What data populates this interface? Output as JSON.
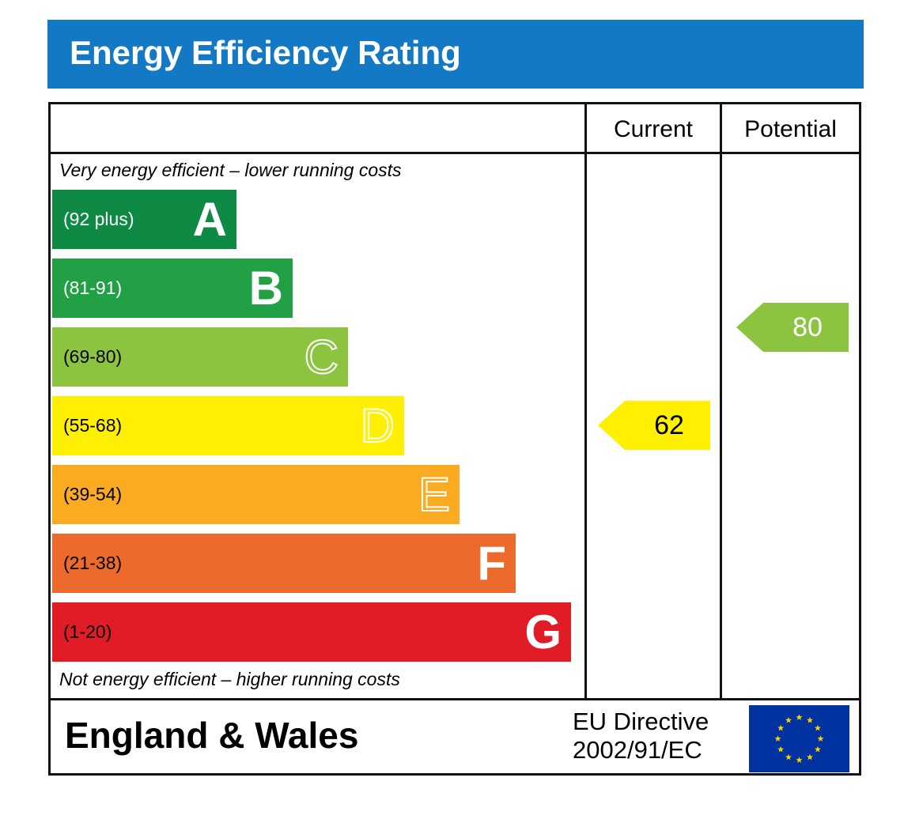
{
  "header": {
    "title": "Energy Efficiency Rating",
    "color": "#1479c4"
  },
  "columns": {
    "current": "Current",
    "potential": "Potential"
  },
  "captions": {
    "top": "Very energy efficient – lower running costs",
    "bottom": "Not energy efficient – higher running costs"
  },
  "footer": {
    "region": "England & Wales",
    "directive_line1": "EU Directive",
    "directive_line2": "2002/91/EC",
    "flag_icon": "eu-flag-icon"
  },
  "chart_data": {
    "type": "bar",
    "title": "Energy Efficiency Rating",
    "bands": [
      {
        "letter": "A",
        "range": "(92 plus)",
        "color": "#0f8a45",
        "text_color": "#ffffff",
        "letter_style": "solid"
      },
      {
        "letter": "B",
        "range": "(81-91)",
        "color": "#22a046",
        "text_color": "#ffffff",
        "letter_style": "solid"
      },
      {
        "letter": "C",
        "range": "(69-80)",
        "color": "#8cc43f",
        "text_color": "#000000",
        "letter_style": "outline"
      },
      {
        "letter": "D",
        "range": "(55-68)",
        "color": "#ffef00",
        "text_color": "#000000",
        "letter_style": "outline"
      },
      {
        "letter": "E",
        "range": "(39-54)",
        "color": "#fbab21",
        "text_color": "#000000",
        "letter_style": "outline"
      },
      {
        "letter": "F",
        "range": "(21-38)",
        "color": "#ec6a2b",
        "text_color": "#000000",
        "letter_style": "solid"
      },
      {
        "letter": "G",
        "range": "(1-20)",
        "color": "#e21c26",
        "text_color": "#000000",
        "letter_style": "solid"
      }
    ],
    "ratings": {
      "current": {
        "value": 62,
        "band": "D",
        "color": "#ffef00"
      },
      "potential": {
        "value": 80,
        "band": "C",
        "color": "#8cc43f"
      }
    }
  }
}
